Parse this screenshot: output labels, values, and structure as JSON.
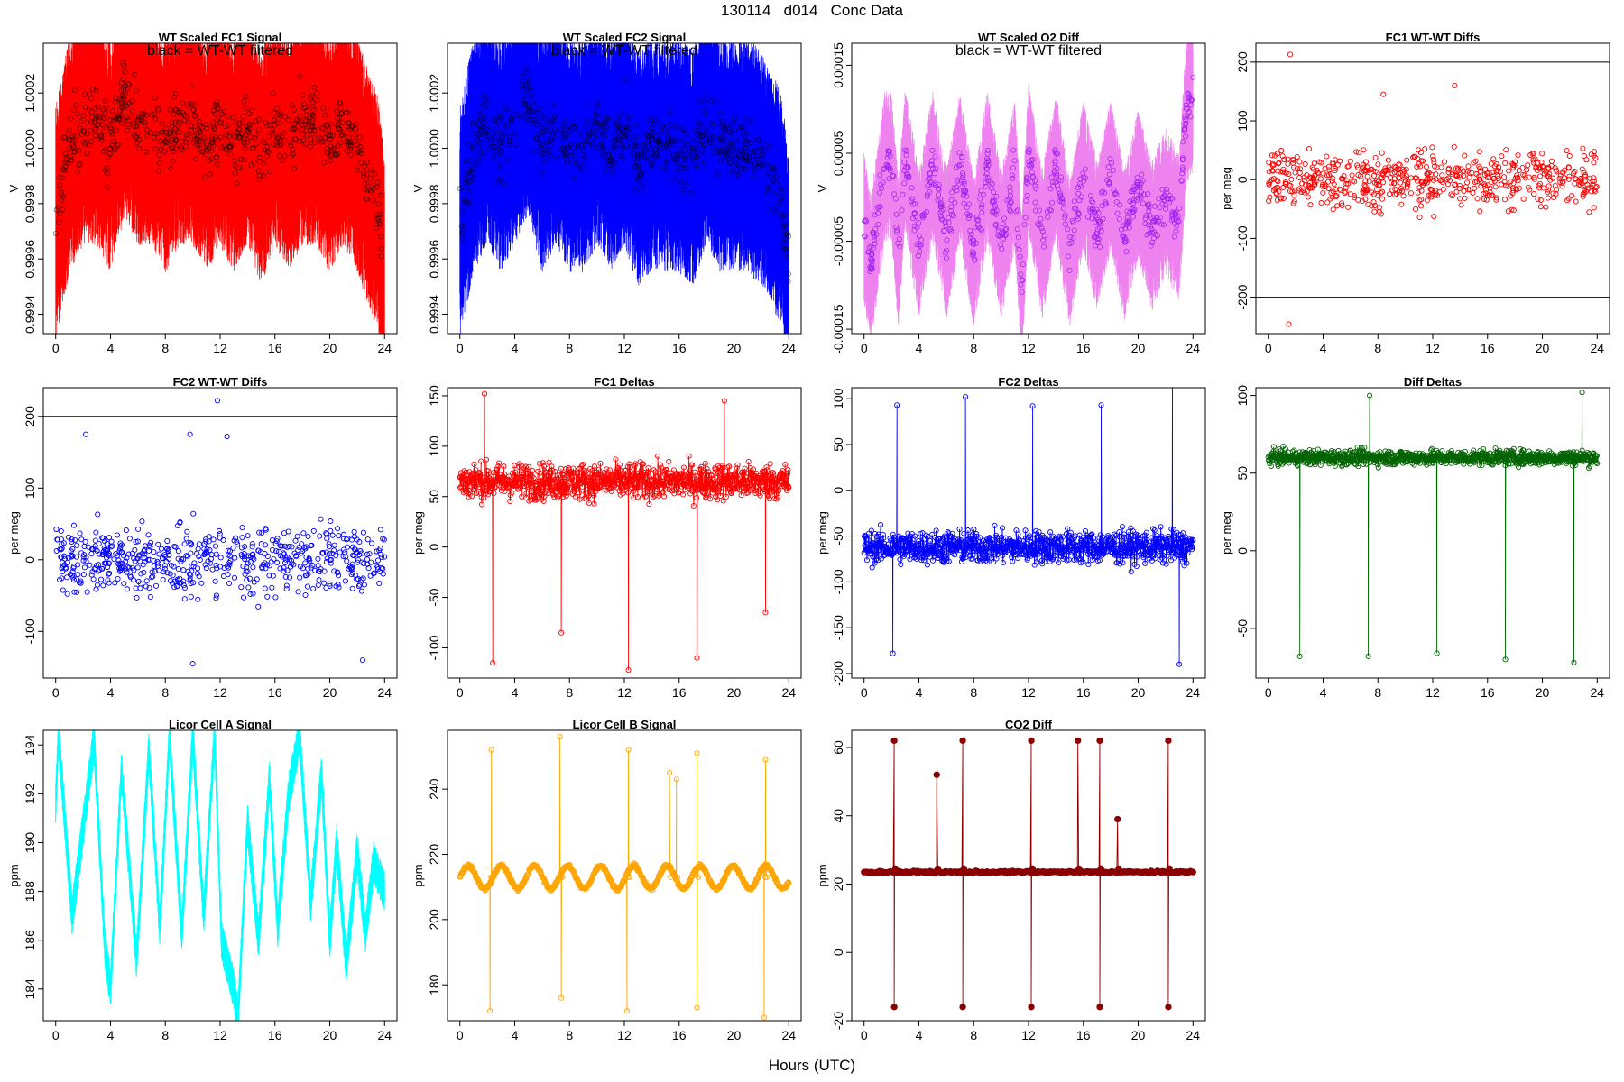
{
  "page": {
    "title": "130114   d014   Conc Data",
    "x_axis_title": "Hours (UTC)"
  },
  "chart_data": [
    {
      "type": "line",
      "title": "WT Scaled FC1 Signal",
      "annotation": "black = WT-WT filtered",
      "ylabel": "V",
      "xlim": [
        0,
        24
      ],
      "ylim": [
        0.99933,
        1.00038
      ],
      "xticks": [
        0,
        4,
        8,
        12,
        16,
        20,
        24
      ],
      "yticks": [
        0.9994,
        0.9996,
        0.9998,
        1.0,
        1.0002
      ],
      "ytick_labels": [
        "0.9994",
        "0.9996",
        "0.9998",
        "1.0000",
        "1.0002"
      ],
      "color": "#ff0000",
      "style": "band",
      "series": [
        {
          "x": [
            0,
            1,
            2,
            3,
            4,
            5,
            6,
            7,
            8,
            9,
            10,
            11,
            12,
            13,
            14,
            15,
            16,
            17,
            18,
            19,
            20,
            21,
            22,
            23,
            23.5,
            24
          ],
          "y": [
            0.99975,
            1.0,
            1.0001,
            1.0001,
            1.0,
            1.0002,
            1.0001,
            1.0001,
            1.0,
            1.0001,
            1.0001,
            1.0,
            1.0001,
            1.0,
            1.0001,
            0.99995,
            1.0001,
            1.0,
            1.0001,
            1.0001,
            1.0,
            1.0001,
            1.0,
            0.99985,
            0.9998,
            0.99955
          ]
        }
      ],
      "band_halfwidth": 0.00045
    },
    {
      "type": "line",
      "title": "WT Scaled FC2 Signal",
      "annotation": "black = WT-WT filtered",
      "ylabel": "V",
      "xlim": [
        0,
        24
      ],
      "ylim": [
        0.99933,
        1.00038
      ],
      "xticks": [
        0,
        4,
        8,
        12,
        16,
        20,
        24
      ],
      "yticks": [
        0.9994,
        0.9996,
        0.9998,
        1.0,
        1.0002
      ],
      "ytick_labels": [
        "0.9994",
        "0.9996",
        "0.9998",
        "1.0000",
        "1.0002"
      ],
      "color": "#0000ff",
      "style": "band",
      "series": [
        {
          "x": [
            0,
            1,
            2,
            3,
            4,
            5,
            6,
            7,
            8,
            9,
            10,
            11,
            12,
            13,
            14,
            15,
            16,
            17,
            18,
            19,
            20,
            21,
            22,
            23,
            23.5,
            24
          ],
          "y": [
            0.99975,
            1.0,
            1.0001,
            1.0,
            1.0001,
            1.0002,
            1.0,
            1.0001,
            1.0,
            1.0,
            1.0001,
            1.0,
            1.0001,
            0.99995,
            1.0,
            1.0,
            1.0,
            0.99995,
            1.0001,
            1.0,
            1.0,
            1.0,
            0.99995,
            0.99985,
            0.9998,
            0.99955
          ]
        }
      ],
      "band_halfwidth": 0.00045
    },
    {
      "type": "line",
      "title": "WT Scaled O2 Diff",
      "annotation": "black = WT-WT filtered",
      "ylabel": "V",
      "xlim": [
        0,
        24
      ],
      "ylim": [
        -0.000155,
        0.000175
      ],
      "xticks": [
        0,
        4,
        8,
        12,
        16,
        20,
        24
      ],
      "yticks": [
        -0.00015,
        -5e-05,
        5e-05,
        0.00015
      ],
      "ytick_labels": [
        "-0.00015",
        "-0.00005",
        "0.00005",
        "0.00015"
      ],
      "color": "#ee82ee",
      "point_color": "#a020f0",
      "style": "band",
      "series": [
        {
          "x": [
            0,
            0.5,
            1,
            1.5,
            2,
            2.5,
            3,
            4,
            5,
            6,
            7,
            8,
            9,
            10,
            11,
            11.5,
            12,
            13,
            14,
            15,
            16,
            17,
            18,
            19,
            20,
            21,
            22,
            23,
            23.5,
            24
          ],
          "y": [
            -3e-05,
            -8e-05,
            -2e-05,
            4e-05,
            4e-05,
            -6e-05,
            5e-05,
            -5e-05,
            4e-05,
            -5e-05,
            4e-05,
            -6e-05,
            4e-05,
            -5e-05,
            3e-05,
            -0.0001,
            5e-05,
            -5e-05,
            4e-05,
            -6e-05,
            3e-05,
            -4e-05,
            3e-05,
            -5e-05,
            2e-05,
            -4e-05,
            0.0,
            -3e-05,
            0.0001,
            0.00012
          ]
        }
      ],
      "band_halfwidth": 9e-05
    },
    {
      "type": "scatter",
      "title": "FC1 WT-WT Diffs",
      "ylabel": "per meg",
      "xlim": [
        0,
        24
      ],
      "ylim": [
        -262,
        232
      ],
      "xticks": [
        0,
        4,
        8,
        12,
        16,
        20,
        24
      ],
      "yticks": [
        -200,
        -100,
        0,
        100,
        200
      ],
      "ytick_labels": [
        "-200",
        "-100",
        "0",
        "100",
        "200"
      ],
      "hlines": [
        200,
        -200
      ],
      "color": "#ff0000",
      "style": "scatter",
      "spread": 55,
      "outliers": [
        {
          "x": 1.6,
          "y": 213
        },
        {
          "x": 1.5,
          "y": -246
        },
        {
          "x": 13.6,
          "y": 160
        },
        {
          "x": 8.4,
          "y": 145
        }
      ]
    },
    {
      "type": "scatter",
      "title": "FC2 WT-WT Diffs",
      "ylabel": "per meg",
      "xlim": [
        0,
        24
      ],
      "ylim": [
        -165,
        240
      ],
      "xticks": [
        0,
        4,
        8,
        12,
        16,
        20,
        24
      ],
      "yticks": [
        -100,
        0,
        100,
        200
      ],
      "ytick_labels": [
        "-100",
        "0",
        "100",
        "200"
      ],
      "hlines": [
        200
      ],
      "color": "#0000ff",
      "style": "scatter",
      "spread": 55,
      "outliers": [
        {
          "x": 11.8,
          "y": 222
        },
        {
          "x": 9.8,
          "y": 175
        },
        {
          "x": 2.2,
          "y": 175
        },
        {
          "x": 12.5,
          "y": 172
        },
        {
          "x": 10.0,
          "y": -145
        },
        {
          "x": 22.4,
          "y": -140
        }
      ]
    },
    {
      "type": "line",
      "title": "FC1 Deltas",
      "ylabel": "per meg",
      "xlim": [
        0,
        24
      ],
      "ylim": [
        -130,
        158
      ],
      "xticks": [
        0,
        4,
        8,
        12,
        16,
        20,
        24
      ],
      "yticks": [
        -100,
        -50,
        0,
        50,
        100,
        150
      ],
      "ytick_labels": [
        "-100",
        "-50",
        "0",
        "50",
        "100",
        "150"
      ],
      "color": "#ff0000",
      "style": "noisy",
      "base": 65,
      "noise": 22,
      "spikes": [
        {
          "x": 2.4,
          "y": -115
        },
        {
          "x": 7.4,
          "y": -85
        },
        {
          "x": 12.3,
          "y": -122
        },
        {
          "x": 17.3,
          "y": -110
        },
        {
          "x": 22.3,
          "y": -65
        },
        {
          "x": 1.8,
          "y": 152
        },
        {
          "x": 19.3,
          "y": 145
        }
      ]
    },
    {
      "type": "line",
      "title": "FC2 Deltas",
      "ylabel": "per meg",
      "xlim": [
        0,
        24
      ],
      "ylim": [
        -205,
        112
      ],
      "xticks": [
        0,
        4,
        8,
        12,
        16,
        20,
        24
      ],
      "yticks": [
        -200,
        -150,
        -100,
        -50,
        0,
        50,
        100
      ],
      "ytick_labels": [
        "-200",
        "-150",
        "-100",
        "-50",
        "0",
        "50",
        "100"
      ],
      "color": "#0000ff",
      "style": "noisy",
      "base": -62,
      "noise": 22,
      "spikes": [
        {
          "x": 2.4,
          "y": 93
        },
        {
          "x": 7.4,
          "y": 102
        },
        {
          "x": 12.3,
          "y": 92
        },
        {
          "x": 17.3,
          "y": 93
        },
        {
          "x": 22.5,
          "y": 122
        },
        {
          "x": 2.1,
          "y": -178
        },
        {
          "x": 23.0,
          "y": -190
        }
      ]
    },
    {
      "type": "line",
      "title": "Diff Deltas",
      "ylabel": "per meg",
      "xlim": [
        0,
        24
      ],
      "ylim": [
        -82,
        105
      ],
      "xticks": [
        0,
        4,
        8,
        12,
        16,
        20,
        24
      ],
      "yticks": [
        -50,
        0,
        50,
        100
      ],
      "ytick_labels": [
        "-50",
        "0",
        "50",
        "100"
      ],
      "color": "#006400",
      "style": "noisy",
      "base": 60,
      "noise": 6,
      "spikes": [
        {
          "x": 2.3,
          "y": -68
        },
        {
          "x": 7.3,
          "y": -68
        },
        {
          "x": 12.3,
          "y": -66
        },
        {
          "x": 17.3,
          "y": -70
        },
        {
          "x": 22.3,
          "y": -72
        },
        {
          "x": 7.4,
          "y": 100
        },
        {
          "x": 22.9,
          "y": 102
        }
      ]
    },
    {
      "type": "line",
      "title": "Licor Cell A Signal",
      "ylabel": "ppm",
      "xlim": [
        0,
        24
      ],
      "ylim": [
        182.7,
        194.6
      ],
      "xticks": [
        0,
        4,
        8,
        12,
        16,
        20,
        24
      ],
      "yticks": [
        184,
        186,
        188,
        190,
        192,
        194
      ],
      "ytick_labels": [
        "184",
        "186",
        "188",
        "190",
        "192",
        "194"
      ],
      "color": "#00ffff",
      "style": "osc",
      "series": [
        {
          "x": [
            0,
            0.2,
            1.2,
            2.8,
            3.6,
            4.0,
            4.8,
            5.9,
            6.8,
            7.6,
            8.3,
            9.2,
            10.0,
            10.8,
            11.6,
            12.1,
            13.0,
            13.3,
            14.0,
            14.8,
            15.6,
            16.2,
            17.0,
            17.8,
            18.6,
            19.4,
            20.0,
            20.5,
            21.2,
            22.0,
            22.6,
            23.2,
            24
          ]
        }
      ],
      "ridge": [
        191.6,
        194.4,
        187.0,
        194.2,
        185.6,
        184.0,
        193.0,
        185.2,
        193.8,
        186.5,
        194.4,
        186.2,
        194.4,
        187.0,
        194.4,
        186.0,
        184.0,
        182.8,
        190.8,
        186.0,
        192.6,
        186.5,
        192.0,
        194.4,
        187.5,
        192.8,
        186.0,
        190.0,
        185.0,
        189.6,
        186.3,
        189.2,
        188.0
      ],
      "band_halfwidth": 0.6
    },
    {
      "type": "line",
      "title": "Licor Cell B Signal",
      "ylabel": "ppm",
      "xlim": [
        0,
        24
      ],
      "ylim": [
        169,
        258
      ],
      "xticks": [
        0,
        4,
        8,
        12,
        16,
        20,
        24
      ],
      "yticks": [
        180,
        200,
        220,
        240
      ],
      "ytick_labels": [
        "180",
        "200",
        "220",
        "240"
      ],
      "color": "#ffa500",
      "style": "wave",
      "base": 213,
      "amp": 3.5,
      "spikes": [
        {
          "x": 2.3,
          "y": 252
        },
        {
          "x": 2.2,
          "y": 172
        },
        {
          "x": 7.3,
          "y": 256
        },
        {
          "x": 7.4,
          "y": 176
        },
        {
          "x": 12.3,
          "y": 252
        },
        {
          "x": 12.2,
          "y": 172
        },
        {
          "x": 17.3,
          "y": 251
        },
        {
          "x": 17.3,
          "y": 173
        },
        {
          "x": 22.3,
          "y": 249
        },
        {
          "x": 22.2,
          "y": 170
        },
        {
          "x": 15.3,
          "y": 245
        },
        {
          "x": 15.8,
          "y": 243
        }
      ]
    },
    {
      "type": "line",
      "title": "CO2 Diff",
      "ylabel": "ppm",
      "xlim": [
        0,
        24
      ],
      "ylim": [
        -20,
        65
      ],
      "xticks": [
        0,
        4,
        8,
        12,
        16,
        20,
        24
      ],
      "yticks": [
        -20,
        0,
        20,
        40,
        60
      ],
      "ytick_labels": [
        "-20",
        "0",
        "20",
        "40",
        "60"
      ],
      "color": "#8b0000",
      "style": "flat",
      "base": 23.5,
      "spikes": [
        {
          "x": 2.2,
          "y": 62
        },
        {
          "x": 2.2,
          "y": -16
        },
        {
          "x": 7.2,
          "y": 62
        },
        {
          "x": 7.2,
          "y": -16
        },
        {
          "x": 12.2,
          "y": 62
        },
        {
          "x": 12.2,
          "y": -16
        },
        {
          "x": 17.2,
          "y": 62
        },
        {
          "x": 17.2,
          "y": -16
        },
        {
          "x": 22.2,
          "y": 62
        },
        {
          "x": 22.2,
          "y": -16
        },
        {
          "x": 5.3,
          "y": 52
        },
        {
          "x": 15.6,
          "y": 62
        },
        {
          "x": 18.5,
          "y": 39
        }
      ]
    }
  ]
}
